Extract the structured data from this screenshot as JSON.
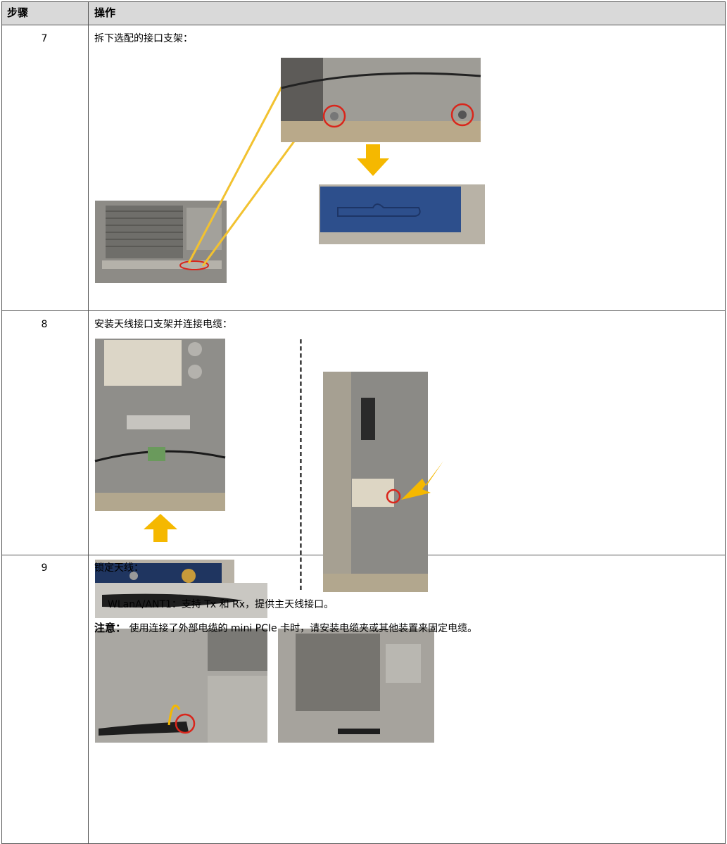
{
  "table": {
    "header": [
      "步骤",
      "操作"
    ],
    "rows": [
      {
        "step": "7",
        "text": "拆下选配的接口支架："
      },
      {
        "step": "8",
        "text": "安装天线接口支架并连接电缆：",
        "caption": "WLanA/ANT1：支持 Tx 和 Rx，提供主天线接口。",
        "note_label": "注意：",
        "note": "使用连接了外部电缆的 mini PCIe 卡时，请安装电缆夹或其他装置来固定电缆。"
      },
      {
        "step": "9",
        "text": "锁定天线："
      }
    ]
  }
}
